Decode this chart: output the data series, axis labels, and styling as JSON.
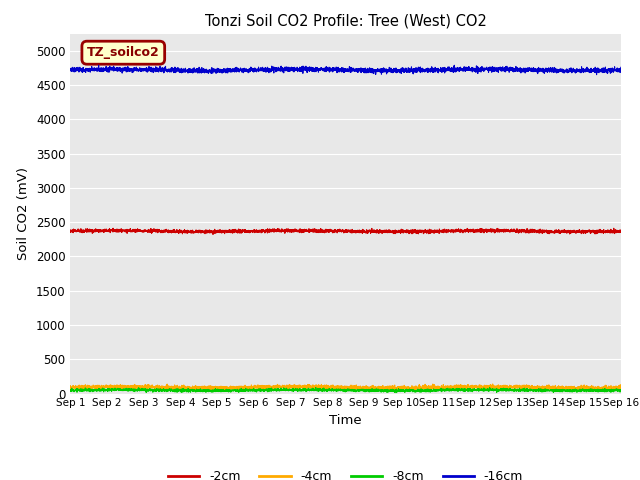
{
  "title": "Tonzi Soil CO2 Profile: Tree (West) CO2",
  "xlabel": "Time",
  "ylabel": "Soil CO2 (mV)",
  "ylim": [
    0,
    5250
  ],
  "yticks": [
    0,
    500,
    1000,
    1500,
    2000,
    2500,
    3000,
    3500,
    4000,
    4500,
    5000
  ],
  "n_points": 4000,
  "days": 15,
  "line_-2cm_mean": 2370,
  "line_-2cm_noise": 25,
  "line_-4cm_mean": 90,
  "line_-4cm_noise": 30,
  "line_-8cm_mean": 50,
  "line_-8cm_noise": 20,
  "line_-16cm_mean": 4720,
  "line_-16cm_noise": 35,
  "color_-2cm": "#cc0000",
  "color_-4cm": "#ffaa00",
  "color_-8cm": "#00cc00",
  "color_-16cm": "#0000cc",
  "linewidth": 0.8,
  "bg_color": "#e8e8e8",
  "fig_bg": "#ffffff",
  "label_box_text": "TZ_soilco2",
  "label_box_facecolor": "#ffffcc",
  "label_box_edgecolor": "#990000",
  "x_tick_labels": [
    "Sep 1",
    "Sep 2",
    "Sep 3",
    "Sep 4",
    "Sep 5",
    "Sep 6",
    "Sep 7",
    "Sep 8",
    "Sep 9",
    "Sep 10",
    "Sep 11",
    "Sep 12",
    "Sep 13",
    "Sep 14",
    "Sep 15",
    "Sep 16"
  ],
  "legend_labels": [
    "-2cm",
    "-4cm",
    "-8cm",
    "-16cm"
  ],
  "legend_colors": [
    "#cc0000",
    "#ffaa00",
    "#00cc00",
    "#0000cc"
  ]
}
